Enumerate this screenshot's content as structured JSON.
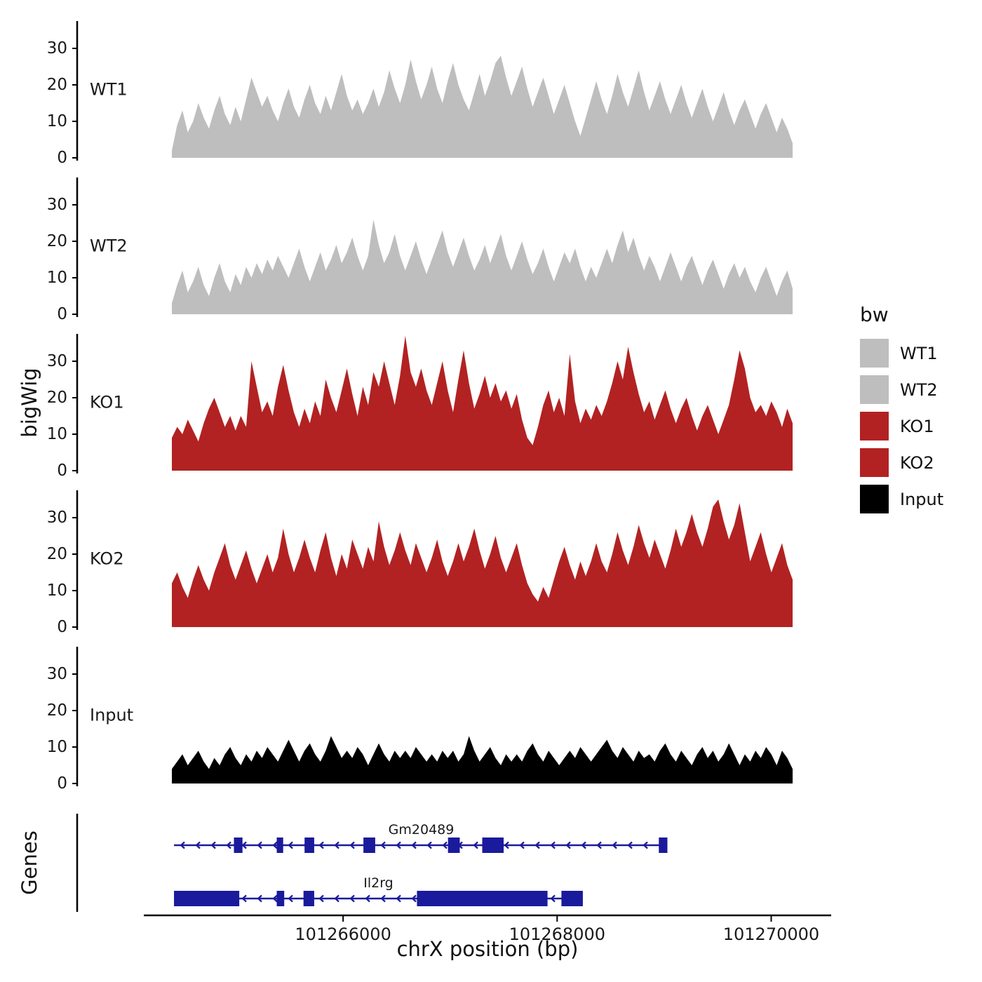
{
  "figure": {
    "y_axis_title": "bigWig",
    "genes_axis_title": "Genes",
    "x_axis_title": "chrX position (bp)"
  },
  "legend": {
    "title": "bw",
    "entries": [
      {
        "label": "WT1",
        "color": "#bebebe"
      },
      {
        "label": "WT2",
        "color": "#bebebe"
      },
      {
        "label": "KO1",
        "color": "#b22222"
      },
      {
        "label": "KO2",
        "color": "#b22222"
      },
      {
        "label": "Input",
        "color": "#000000"
      }
    ]
  },
  "chart_data": {
    "type": "area",
    "title": "",
    "xlabel": "chrX position (bp)",
    "ylabel": "bigWig",
    "x_start": 101264400,
    "x_end": 101270200,
    "x_ticks": [
      101266000,
      101268000,
      101270000
    ],
    "x_tick_labels": [
      "101266000",
      "101268000",
      "101270000"
    ],
    "y_ticks": [
      0,
      10,
      20,
      30
    ],
    "ylim": [
      0,
      38
    ],
    "grid": false,
    "legend_position": "right",
    "gene_color": "#1a1a9c",
    "tracks": [
      {
        "name": "WT1",
        "color": "#bebebe",
        "values": [
          2,
          9,
          13,
          7,
          10,
          15,
          11,
          8,
          13,
          17,
          12,
          9,
          14,
          10,
          16,
          22,
          18,
          14,
          17,
          13,
          10,
          15,
          19,
          14,
          11,
          16,
          20,
          15,
          12,
          17,
          13,
          18,
          23,
          17,
          13,
          16,
          12,
          15,
          19,
          14,
          18,
          24,
          19,
          15,
          20,
          27,
          21,
          16,
          20,
          25,
          19,
          15,
          21,
          26,
          20,
          16,
          13,
          18,
          23,
          17,
          21,
          26,
          28,
          22,
          17,
          21,
          25,
          19,
          14,
          18,
          22,
          17,
          12,
          16,
          20,
          15,
          10,
          6,
          11,
          16,
          21,
          16,
          12,
          17,
          23,
          18,
          14,
          19,
          24,
          18,
          13,
          17,
          21,
          16,
          12,
          16,
          20,
          15,
          11,
          15,
          19,
          14,
          10,
          14,
          18,
          13,
          9,
          13,
          16,
          12,
          8,
          12,
          15,
          11,
          7,
          11,
          8,
          4
        ]
      },
      {
        "name": "WT2",
        "color": "#bebebe",
        "values": [
          3,
          8,
          12,
          6,
          9,
          13,
          8,
          5,
          10,
          14,
          9,
          6,
          11,
          8,
          13,
          10,
          14,
          11,
          15,
          12,
          16,
          13,
          10,
          14,
          18,
          13,
          9,
          13,
          17,
          12,
          15,
          19,
          14,
          17,
          21,
          16,
          12,
          16,
          26,
          19,
          14,
          17,
          22,
          16,
          12,
          16,
          20,
          15,
          11,
          15,
          19,
          23,
          17,
          13,
          17,
          21,
          16,
          12,
          15,
          19,
          14,
          18,
          22,
          16,
          12,
          16,
          20,
          15,
          11,
          14,
          18,
          13,
          9,
          13,
          17,
          14,
          18,
          13,
          9,
          13,
          10,
          14,
          18,
          14,
          19,
          23,
          17,
          21,
          16,
          12,
          16,
          13,
          9,
          13,
          17,
          13,
          9,
          13,
          16,
          12,
          8,
          12,
          15,
          11,
          7,
          11,
          14,
          10,
          13,
          9,
          6,
          10,
          13,
          9,
          5,
          9,
          12,
          7
        ]
      },
      {
        "name": "KO1",
        "color": "#b22222",
        "values": [
          9,
          12,
          10,
          14,
          11,
          8,
          13,
          17,
          20,
          16,
          12,
          15,
          11,
          15,
          12,
          30,
          23,
          16,
          19,
          15,
          23,
          29,
          22,
          16,
          12,
          17,
          13,
          19,
          15,
          25,
          20,
          16,
          22,
          28,
          21,
          15,
          23,
          18,
          27,
          23,
          30,
          24,
          18,
          26,
          37,
          27,
          23,
          28,
          22,
          18,
          24,
          30,
          22,
          16,
          25,
          33,
          24,
          17,
          21,
          26,
          20,
          24,
          19,
          22,
          17,
          21,
          14,
          9,
          7,
          12,
          18,
          22,
          16,
          20,
          15,
          32,
          19,
          13,
          17,
          14,
          18,
          15,
          19,
          24,
          30,
          25,
          34,
          27,
          21,
          16,
          19,
          14,
          18,
          22,
          17,
          13,
          17,
          20,
          15,
          11,
          15,
          18,
          14,
          10,
          14,
          18,
          25,
          33,
          28,
          20,
          16,
          18,
          15,
          19,
          16,
          12,
          17,
          13
        ]
      },
      {
        "name": "KO2",
        "color": "#b22222",
        "values": [
          12,
          15,
          11,
          8,
          13,
          17,
          13,
          10,
          15,
          19,
          23,
          17,
          13,
          17,
          21,
          16,
          12,
          16,
          20,
          15,
          19,
          27,
          20,
          15,
          19,
          24,
          19,
          15,
          21,
          26,
          19,
          14,
          20,
          16,
          24,
          20,
          16,
          22,
          18,
          29,
          22,
          17,
          21,
          26,
          21,
          17,
          23,
          19,
          15,
          19,
          24,
          18,
          14,
          18,
          23,
          18,
          22,
          27,
          21,
          16,
          20,
          25,
          19,
          15,
          19,
          23,
          17,
          12,
          9,
          7,
          11,
          8,
          13,
          18,
          22,
          17,
          13,
          18,
          14,
          18,
          23,
          18,
          15,
          20,
          26,
          21,
          17,
          22,
          28,
          23,
          19,
          24,
          20,
          16,
          21,
          27,
          22,
          26,
          31,
          26,
          22,
          27,
          33,
          35,
          29,
          24,
          28,
          34,
          26,
          18,
          22,
          26,
          20,
          15,
          19,
          23,
          17,
          13
        ]
      },
      {
        "name": "Input",
        "color": "#000000",
        "values": [
          4,
          6,
          8,
          5,
          7,
          9,
          6,
          4,
          7,
          5,
          8,
          10,
          7,
          5,
          8,
          6,
          9,
          7,
          10,
          8,
          6,
          9,
          12,
          9,
          6,
          9,
          11,
          8,
          6,
          9,
          13,
          10,
          7,
          9,
          7,
          10,
          8,
          5,
          8,
          11,
          8,
          6,
          9,
          7,
          9,
          7,
          10,
          8,
          6,
          8,
          6,
          9,
          7,
          9,
          6,
          8,
          13,
          9,
          6,
          8,
          10,
          7,
          5,
          8,
          6,
          8,
          6,
          9,
          11,
          8,
          6,
          9,
          7,
          5,
          7,
          9,
          7,
          10,
          8,
          6,
          8,
          10,
          12,
          9,
          7,
          10,
          8,
          6,
          9,
          7,
          8,
          6,
          9,
          11,
          8,
          6,
          9,
          7,
          5,
          8,
          10,
          7,
          9,
          6,
          8,
          11,
          8,
          5,
          8,
          6,
          9,
          7,
          10,
          8,
          5,
          9,
          7,
          4
        ]
      }
    ],
    "genes": [
      {
        "name": "Gm20489",
        "strand": "-",
        "start": 101264420,
        "end": 101269030,
        "exons": [
          [
            101264980,
            101265060
          ],
          [
            101265380,
            101265440
          ],
          [
            101265640,
            101265730
          ],
          [
            101266190,
            101266300
          ],
          [
            101266980,
            101267090
          ],
          [
            101267300,
            101267500
          ],
          [
            101268950,
            101269030
          ]
        ],
        "label_x": 101266730
      },
      {
        "name": "Il2rg",
        "strand": "-",
        "start": 101264420,
        "end": 101268240,
        "exons": [
          [
            101264420,
            101265030
          ],
          [
            101265380,
            101265450
          ],
          [
            101265630,
            101265730
          ],
          [
            101266690,
            101267910
          ],
          [
            101268040,
            101268240
          ]
        ],
        "label_x": 101266330
      }
    ]
  }
}
